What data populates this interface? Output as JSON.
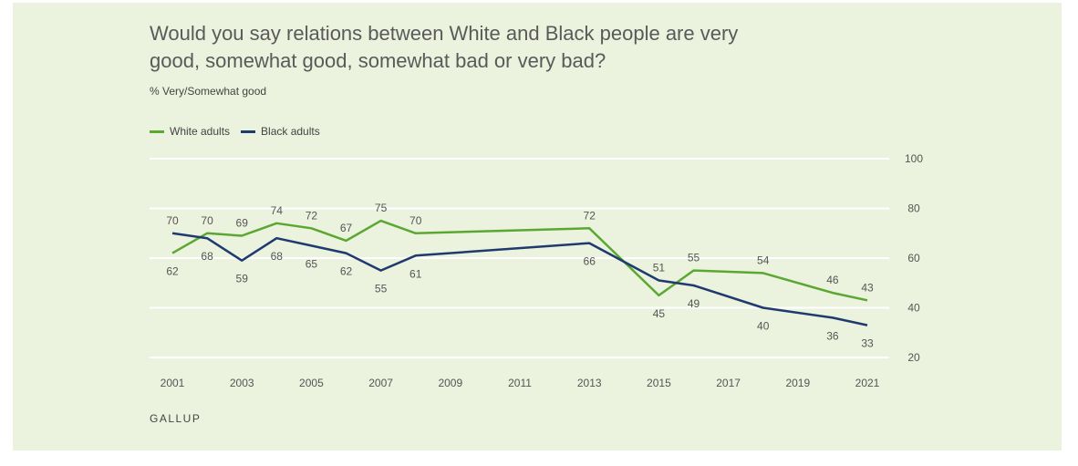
{
  "title": "Would you say relations between White and Black people are very good, somewhat good, somewhat bad or very bad?",
  "subtitle": "% Very/Somewhat good",
  "brand": "GALLUP",
  "colors": {
    "white_adults": "#5aa832",
    "black_adults": "#1f3a6e",
    "background": "#ebf2dd",
    "grid": "#ffffff"
  },
  "chart_data": {
    "type": "line",
    "ylim": [
      20,
      100
    ],
    "yticks": [
      20,
      40,
      60,
      80,
      100
    ],
    "xlim": [
      2001,
      2021
    ],
    "xticks": [
      2001,
      2003,
      2005,
      2007,
      2009,
      2011,
      2013,
      2015,
      2017,
      2019,
      2021
    ],
    "grid": true,
    "legend_position": "top-left",
    "series": [
      {
        "name": "White adults",
        "x": [
          2001,
          2002,
          2003,
          2004,
          2005,
          2006,
          2007,
          2008,
          2013,
          2015,
          2016,
          2018,
          2020,
          2021
        ],
        "values": [
          62,
          70,
          69,
          74,
          72,
          67,
          75,
          70,
          72,
          45,
          55,
          54,
          46,
          43
        ]
      },
      {
        "name": "Black adults",
        "x": [
          2001,
          2002,
          2003,
          2004,
          2005,
          2006,
          2007,
          2008,
          2013,
          2015,
          2016,
          2018,
          2020,
          2021
        ],
        "values": [
          70,
          68,
          59,
          68,
          65,
          62,
          55,
          61,
          66,
          51,
          49,
          40,
          36,
          33
        ]
      }
    ]
  }
}
